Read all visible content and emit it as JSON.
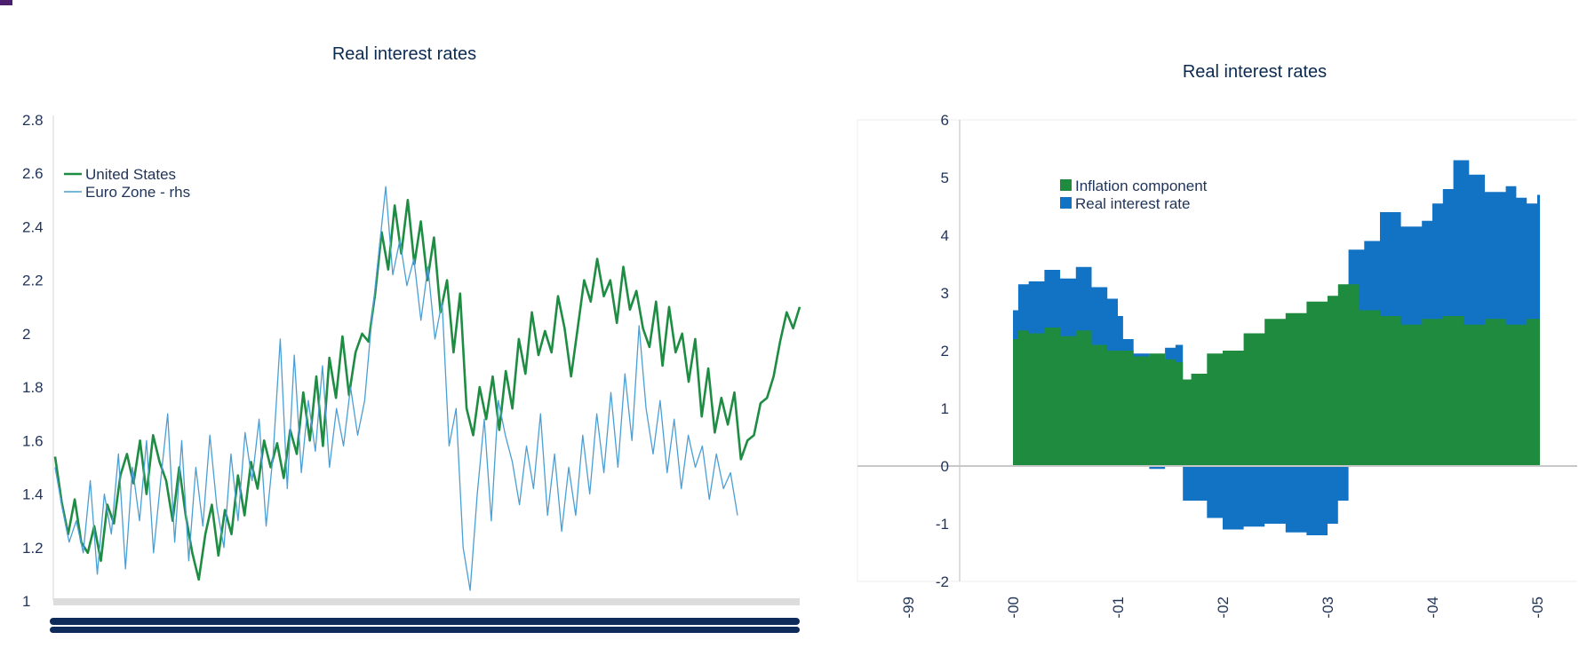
{
  "colors": {
    "us_line": "#1e8c43",
    "ez_line": "#4a9fd4",
    "inflation_area": "#1e8b3f",
    "real_area": "#1273c4",
    "axis_text": "#1f3358",
    "corner_mark": "#4b1e6e"
  },
  "chart_data": [
    {
      "type": "line",
      "title": "Real interest rates",
      "xlabel": "",
      "ylabel": "",
      "ylim": [
        1,
        2.8
      ],
      "yticks": [
        "2.8",
        "2.6",
        "2.4",
        "2.2",
        "2",
        "1.8",
        "1.6",
        "1.4",
        "1.2",
        "1"
      ],
      "legend_position": "top-left",
      "grid": false,
      "x_tick_labels_note": "",
      "series": [
        {
          "name": "United States",
          "color": "#1e8c43",
          "values": [
            1.54,
            1.37,
            1.25,
            1.38,
            1.22,
            1.18,
            1.28,
            1.15,
            1.36,
            1.29,
            1.47,
            1.55,
            1.44,
            1.6,
            1.4,
            1.62,
            1.52,
            1.45,
            1.3,
            1.5,
            1.32,
            1.18,
            1.08,
            1.25,
            1.36,
            1.17,
            1.34,
            1.25,
            1.47,
            1.32,
            1.52,
            1.42,
            1.6,
            1.5,
            1.59,
            1.46,
            1.64,
            1.55,
            1.78,
            1.6,
            1.84,
            1.58,
            1.91,
            1.76,
            1.99,
            1.77,
            1.93,
            2.0,
            1.97,
            2.15,
            2.38,
            2.24,
            2.48,
            2.3,
            2.5,
            2.26,
            2.42,
            2.2,
            2.36,
            2.08,
            2.2,
            1.93,
            2.15,
            1.72,
            1.62,
            1.8,
            1.68,
            1.84,
            1.64,
            1.86,
            1.72,
            1.98,
            1.85,
            2.08,
            1.92,
            2.01,
            1.93,
            2.14,
            2.02,
            1.84,
            2.02,
            2.2,
            2.12,
            2.28,
            2.14,
            2.2,
            2.04,
            2.25,
            2.09,
            2.16,
            2.02,
            1.95,
            2.12,
            1.88,
            2.1,
            1.93,
            2.0,
            1.82,
            1.98,
            1.69,
            1.87,
            1.63,
            1.76,
            1.66,
            1.78,
            1.53,
            1.6,
            1.62,
            1.74,
            1.76,
            1.84,
            1.97,
            2.08,
            2.02,
            2.1
          ]
        },
        {
          "name": "Euro Zone - rhs",
          "color": "#4a9fd4",
          "values": [
            1.5,
            1.35,
            1.22,
            1.3,
            1.18,
            1.45,
            1.1,
            1.4,
            1.25,
            1.55,
            1.12,
            1.5,
            1.3,
            1.6,
            1.18,
            1.45,
            1.7,
            1.22,
            1.6,
            1.15,
            1.5,
            1.28,
            1.62,
            1.35,
            1.2,
            1.55,
            1.3,
            1.63,
            1.45,
            1.68,
            1.28,
            1.55,
            1.98,
            1.42,
            1.92,
            1.48,
            1.75,
            1.56,
            1.88,
            1.5,
            1.72,
            1.58,
            1.8,
            1.62,
            1.75,
            2.05,
            2.3,
            2.55,
            2.22,
            2.35,
            2.18,
            2.28,
            2.05,
            2.25,
            1.98,
            2.12,
            1.58,
            1.72,
            1.2,
            1.04,
            1.4,
            1.68,
            1.3,
            1.75,
            1.62,
            1.52,
            1.36,
            1.58,
            1.42,
            1.7,
            1.32,
            1.55,
            1.26,
            1.5,
            1.32,
            1.62,
            1.4,
            1.7,
            1.48,
            1.78,
            1.5,
            1.85,
            1.6,
            2.03,
            1.72,
            1.55,
            1.75,
            1.48,
            1.68,
            1.42,
            1.62,
            1.5,
            1.58,
            1.38,
            1.55,
            1.42,
            1.48,
            1.32
          ]
        }
      ]
    },
    {
      "type": "area",
      "title": "Real interest rates",
      "xlabel": "",
      "ylabel": "",
      "ylim": [
        -2,
        6
      ],
      "yticks": [
        "6",
        "5",
        "4",
        "3",
        "2",
        "1",
        "0",
        "-1",
        "-2"
      ],
      "xticks": [
        "-99",
        "-00",
        "-01",
        "-02",
        "-03",
        "-04",
        "-05"
      ],
      "xlim": [
        -1.45,
        5.3
      ],
      "legend_position": "top-left",
      "grid": false,
      "series": [
        {
          "name": "Inflation component",
          "color": "#1e8b3f",
          "x": [
            0.0,
            0.05,
            0.15,
            0.3,
            0.45,
            0.6,
            0.75,
            0.9,
            1.0,
            1.15,
            1.3,
            1.45,
            1.55,
            1.62,
            1.7,
            1.85,
            2.0,
            2.2,
            2.4,
            2.6,
            2.8,
            3.0,
            3.1,
            3.3,
            3.5,
            3.7,
            3.9,
            4.1,
            4.3,
            4.5,
            4.7,
            4.9,
            5.0
          ],
          "values": [
            2.2,
            2.35,
            2.3,
            2.4,
            2.25,
            2.35,
            2.1,
            2.0,
            2.0,
            1.9,
            1.95,
            1.85,
            1.8,
            1.5,
            1.6,
            1.95,
            2.0,
            2.3,
            2.55,
            2.65,
            2.85,
            2.95,
            3.15,
            2.7,
            2.6,
            2.45,
            2.55,
            2.6,
            2.45,
            2.55,
            2.45,
            2.55,
            2.55
          ]
        },
        {
          "name": "Real interest rate",
          "color": "#1273c4",
          "x": [
            0.0,
            0.05,
            0.15,
            0.3,
            0.45,
            0.6,
            0.75,
            0.9,
            1.0,
            1.05,
            1.15,
            1.3,
            1.45,
            1.55,
            1.62,
            1.7,
            1.85,
            2.0,
            2.2,
            2.4,
            2.6,
            2.8,
            3.0,
            3.1,
            3.2,
            3.35,
            3.5,
            3.7,
            3.9,
            4.0,
            4.1,
            4.2,
            4.35,
            4.5,
            4.7,
            4.8,
            4.9,
            5.0
          ],
          "values": [
            0.5,
            0.8,
            0.9,
            1.0,
            1.0,
            1.1,
            1.0,
            0.9,
            0.6,
            0.2,
            0.05,
            -0.05,
            0.2,
            0.3,
            -0.6,
            -0.6,
            -0.9,
            -1.1,
            -1.05,
            -1.0,
            -1.15,
            -1.2,
            -1.0,
            -0.6,
            0.6,
            1.2,
            1.8,
            1.7,
            1.7,
            2.0,
            2.2,
            2.7,
            2.6,
            2.2,
            2.4,
            2.2,
            2.0,
            2.15
          ]
        }
      ]
    }
  ]
}
